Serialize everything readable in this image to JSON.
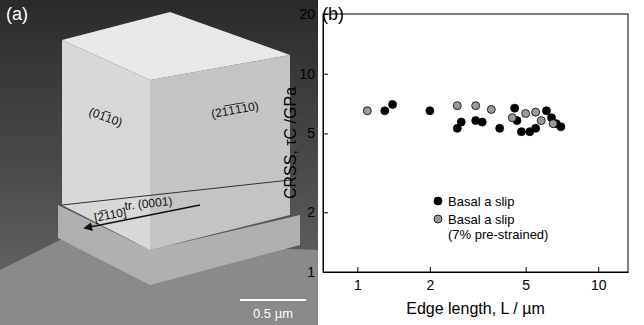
{
  "image": {
    "label": "(a)",
    "annotations": [
      "(01̅10)",
      "(21̅1̅1̅10)",
      "tr. (0001)",
      "[2̅110]"
    ],
    "scale_bar": "0.5 µm"
  },
  "chart_data": {
    "type": "scatter",
    "title": "(b)",
    "x_label": "Edge length, L / µm",
    "y_label": "CRSS, τC /GPa",
    "log": true,
    "legend": "lower right",
    "xlim": [
      0.72,
      13.3
    ],
    "xticks": [
      1,
      2,
      5,
      10
    ],
    "ylim": [
      1,
      20
    ],
    "yticks": [
      1,
      2,
      5,
      10,
      20
    ],
    "series": [
      {
        "name": "Basal a slip",
        "color": "#000000",
        "marker": "circle",
        "x": [
          1.3,
          1.4,
          2.0,
          2.6,
          2.7,
          3.1,
          3.3,
          3.9,
          4.5,
          4.6,
          4.8,
          5.2,
          5.5,
          6.1,
          6.4,
          6.7,
          7.0
        ],
        "values": [
          6.5,
          7.0,
          6.5,
          5.3,
          5.7,
          5.8,
          5.7,
          5.3,
          6.7,
          5.8,
          5.1,
          5.1,
          5.3,
          6.5,
          6.0,
          5.6,
          5.4
        ]
      },
      {
        "name": "Basal a slip (7% pre-strained)",
        "color": "#999999",
        "marker": "circle",
        "x": [
          1.1,
          2.6,
          3.1,
          3.6,
          4.4,
          5.0,
          5.5,
          5.8,
          6.5
        ],
        "values": [
          6.5,
          6.9,
          6.9,
          6.6,
          6.0,
          6.3,
          6.4,
          5.8,
          5.6
        ]
      }
    ]
  }
}
